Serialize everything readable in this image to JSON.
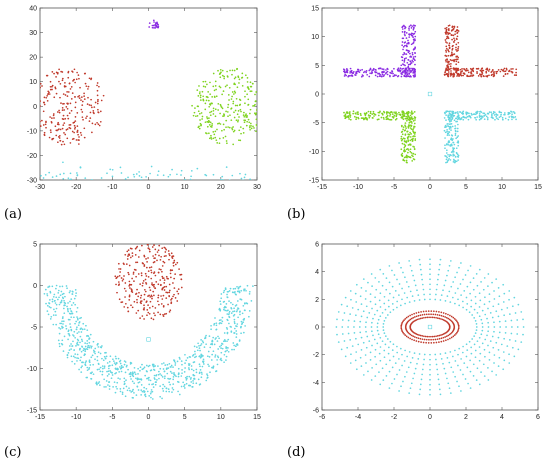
{
  "chart_data": [
    {
      "panel": "(a)",
      "type": "scatter",
      "xlim": [
        -30,
        30
      ],
      "ylim": [
        -30,
        40
      ],
      "xticks": [
        -30,
        -20,
        -10,
        0,
        10,
        20,
        30
      ],
      "yticks": [
        -30,
        -20,
        -10,
        0,
        10,
        20,
        30,
        40
      ],
      "grid": false,
      "clusters": [
        {
          "shape": "disc",
          "color": "#c0392b",
          "center": [
            -22,
            0
          ],
          "radius": [
            10,
            16
          ],
          "n": 260
        },
        {
          "shape": "disc",
          "color": "#7fd31f",
          "center": [
            22,
            0
          ],
          "radius": [
            10,
            16
          ],
          "n": 300
        },
        {
          "shape": "disc",
          "color": "#8a2be2",
          "center": [
            1.5,
            33
          ],
          "radius": [
            1.5,
            2
          ],
          "n": 25
        },
        {
          "shape": "bandx",
          "color": "#63d6e0",
          "center": [
            0,
            -32
          ],
          "xhalf": 30,
          "yspread": 6,
          "n": 260
        }
      ]
    },
    {
      "panel": "(b)",
      "type": "scatter",
      "xlim": [
        -15,
        15
      ],
      "ylim": [
        -15,
        15
      ],
      "xticks": [
        -15,
        -10,
        -5,
        0,
        5,
        10,
        15
      ],
      "yticks": [
        -15,
        -10,
        -5,
        0,
        5,
        10,
        15
      ],
      "grid": false,
      "clusters": [
        {
          "shape": "L",
          "color": "#8a2be2",
          "vbar": [
            -4,
            -2,
            3,
            12
          ],
          "hbar": [
            -12,
            -2,
            3,
            4.5
          ],
          "n": 320
        },
        {
          "shape": "L",
          "color": "#c0392b",
          "vbar": [
            2,
            4,
            3,
            12
          ],
          "hbar": [
            2,
            12,
            3,
            4.5
          ],
          "n": 320
        },
        {
          "shape": "L",
          "color": "#7fd31f",
          "vbar": [
            -4,
            -2,
            -12,
            -3
          ],
          "hbar": [
            -12,
            -2,
            -4.5,
            -3
          ],
          "n": 320
        },
        {
          "shape": "L",
          "color": "#63d6e0",
          "vbar": [
            2,
            4,
            -12,
            -3
          ],
          "hbar": [
            2,
            12,
            -4.5,
            -3
          ],
          "n": 320
        }
      ]
    },
    {
      "panel": "(c)",
      "type": "scatter",
      "xlim": [
        -15,
        15
      ],
      "ylim": [
        -15,
        5
      ],
      "xticks": [
        -15,
        -10,
        -5,
        0,
        5,
        10,
        15
      ],
      "yticks": [
        -15,
        -10,
        -5,
        0,
        5
      ],
      "grid": false,
      "clusters": [
        {
          "shape": "disc",
          "color": "#c0392b",
          "center": [
            0,
            0.5
          ],
          "radius": [
            4.7,
            4.7
          ],
          "n": 300
        },
        {
          "shape": "arc",
          "color": "#63d6e0",
          "center": [
            0,
            0
          ],
          "radius": [
            10,
            14.5
          ],
          "angle": [
            180,
            360
          ],
          "n": 900
        }
      ]
    },
    {
      "panel": "(d)",
      "type": "scatter",
      "xlim": [
        -6,
        6
      ],
      "ylim": [
        -6,
        6
      ],
      "xticks": [
        -6,
        -4,
        -2,
        0,
        2,
        4,
        6
      ],
      "yticks": [
        -6,
        -4,
        -2,
        0,
        2,
        4,
        6
      ],
      "grid": false,
      "clusters": [
        {
          "shape": "rings",
          "color": "#63d6e0",
          "rx": [
            2.6,
            5.2
          ],
          "ry": [
            2.0,
            4.9
          ],
          "rings": 9,
          "spokes": 56
        },
        {
          "shape": "rings",
          "color": "#c0392b",
          "rx": [
            1.1,
            1.6
          ],
          "ry": [
            0.7,
            1.15
          ],
          "rings": 3,
          "spokes": 70
        }
      ]
    }
  ],
  "labels": {
    "a": "(a)",
    "b": "(b)",
    "c": "(c)",
    "d": "(d)"
  }
}
